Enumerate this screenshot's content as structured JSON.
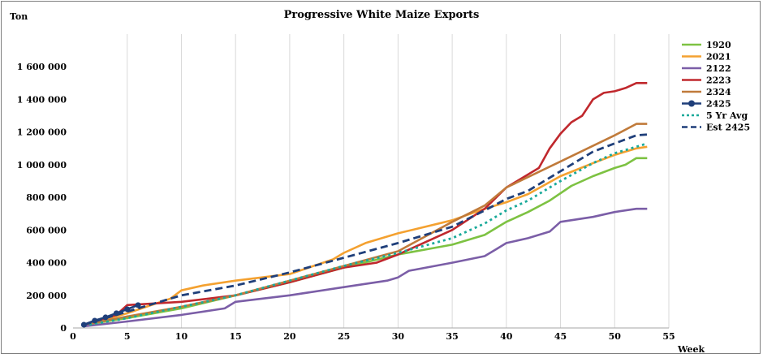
{
  "chart_data": {
    "type": "line",
    "title": "Progressive White Maize Exports",
    "ylabel": "Ton",
    "xlabel": "Week",
    "xlim": [
      0,
      55
    ],
    "ylim": [
      0,
      1800000
    ],
    "xticks": [
      0,
      5,
      10,
      15,
      20,
      25,
      30,
      35,
      40,
      45,
      50,
      55
    ],
    "yticks": [
      0,
      200000,
      400000,
      600000,
      800000,
      1000000,
      1200000,
      1400000,
      1600000
    ],
    "ytick_labels": [
      "0",
      "200 000",
      "400 000",
      "600 000",
      "800 000",
      "1 000 000",
      "1 200 000",
      "1 400 000",
      "1 600 000"
    ],
    "grid": "vertical",
    "legend_position": "right",
    "series": [
      {
        "name": "1920",
        "color": "#7dc242",
        "style": "solid",
        "marker": false,
        "x": [
          1,
          5,
          10,
          15,
          20,
          25,
          30,
          35,
          38,
          40,
          42,
          44,
          46,
          48,
          50,
          51,
          52,
          53
        ],
        "y": [
          20000,
          60000,
          120000,
          200000,
          280000,
          370000,
          450000,
          510000,
          570000,
          650000,
          710000,
          780000,
          870000,
          930000,
          980000,
          1000000,
          1040000,
          1040000
        ]
      },
      {
        "name": "2021",
        "color": "#f4a130",
        "style": "solid",
        "marker": false,
        "x": [
          1,
          5,
          9,
          10,
          12,
          15,
          20,
          24,
          25,
          27,
          30,
          35,
          38,
          40,
          42,
          45,
          48,
          50,
          52,
          53
        ],
        "y": [
          15000,
          90000,
          180000,
          230000,
          260000,
          290000,
          330000,
          420000,
          460000,
          520000,
          580000,
          660000,
          730000,
          770000,
          820000,
          930000,
          1010000,
          1060000,
          1100000,
          1110000
        ],
        "source_hint": "read from plot"
      },
      {
        "name": "2122",
        "color": "#7b5ea7",
        "style": "solid",
        "marker": false,
        "x": [
          1,
          5,
          10,
          14,
          15,
          20,
          25,
          29,
          30,
          31,
          35,
          38,
          39,
          40,
          42,
          44,
          45,
          48,
          50,
          52,
          53
        ],
        "y": [
          10000,
          40000,
          80000,
          120000,
          160000,
          200000,
          250000,
          290000,
          310000,
          350000,
          400000,
          440000,
          480000,
          520000,
          550000,
          590000,
          650000,
          680000,
          710000,
          730000,
          730000
        ]
      },
      {
        "name": "2223",
        "color": "#c0282d",
        "style": "solid",
        "marker": false,
        "x": [
          1,
          4,
          5,
          10,
          15,
          20,
          25,
          28,
          30,
          35,
          38,
          40,
          43,
          44,
          45,
          46,
          47,
          48,
          49,
          50,
          51,
          52,
          53
        ],
        "y": [
          20000,
          80000,
          140000,
          160000,
          200000,
          280000,
          370000,
          400000,
          450000,
          600000,
          730000,
          860000,
          980000,
          1100000,
          1190000,
          1260000,
          1300000,
          1400000,
          1440000,
          1450000,
          1470000,
          1500000,
          1500000
        ]
      },
      {
        "name": "2324",
        "color": "#c07a3a",
        "style": "solid",
        "marker": false,
        "x": [
          1,
          5,
          10,
          15,
          20,
          25,
          30,
          35,
          38,
          40,
          45,
          50,
          52,
          53
        ],
        "y": [
          20000,
          70000,
          130000,
          200000,
          290000,
          380000,
          470000,
          650000,
          750000,
          860000,
          1020000,
          1180000,
          1250000,
          1250000
        ]
      },
      {
        "name": "2425",
        "color": "#1f3f7a",
        "style": "solid",
        "marker": true,
        "x": [
          1,
          2,
          3,
          4,
          5,
          6
        ],
        "y": [
          20000,
          45000,
          65000,
          90000,
          115000,
          140000
        ]
      },
      {
        "name": "5 Yr Avg",
        "color": "#1aaa9a",
        "style": "dotted",
        "marker": false,
        "x": [
          1,
          5,
          10,
          15,
          20,
          25,
          30,
          35,
          38,
          40,
          42,
          45,
          48,
          50,
          52,
          53
        ],
        "y": [
          15000,
          60000,
          130000,
          200000,
          290000,
          380000,
          460000,
          550000,
          640000,
          720000,
          780000,
          900000,
          1010000,
          1070000,
          1110000,
          1130000
        ]
      },
      {
        "name": "Est 2425",
        "color": "#1f3f7a",
        "style": "dashed",
        "marker": false,
        "x": [
          1,
          5,
          10,
          15,
          20,
          25,
          30,
          35,
          38,
          40,
          42,
          45,
          48,
          50,
          52,
          53
        ],
        "y": [
          20000,
          100000,
          200000,
          260000,
          340000,
          430000,
          520000,
          620000,
          720000,
          790000,
          840000,
          960000,
          1080000,
          1130000,
          1180000,
          1185000
        ]
      }
    ]
  }
}
